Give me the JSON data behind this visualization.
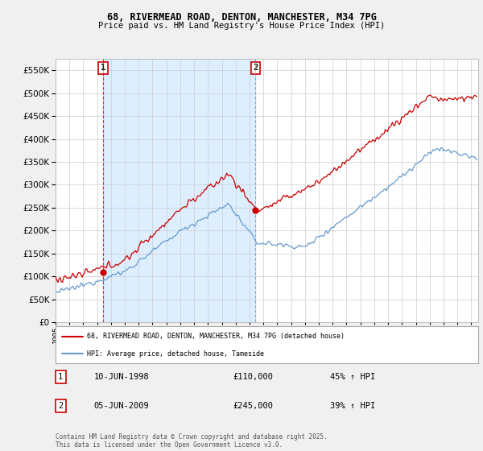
{
  "title_line1": "68, RIVERMEAD ROAD, DENTON, MANCHESTER, M34 7PG",
  "title_line2": "Price paid vs. HM Land Registry's House Price Index (HPI)",
  "legend_label_red": "68, RIVERMEAD ROAD, DENTON, MANCHESTER, M34 7PG (detached house)",
  "legend_label_blue": "HPI: Average price, detached house, Tameside",
  "annotation1_date": "10-JUN-1998",
  "annotation1_price": "£110,000",
  "annotation1_hpi": "45% ↑ HPI",
  "annotation2_date": "05-JUN-2009",
  "annotation2_price": "£245,000",
  "annotation2_hpi": "39% ↑ HPI",
  "footer": "Contains HM Land Registry data © Crown copyright and database right 2025.\nThis data is licensed under the Open Government Licence v3.0.",
  "ylim": [
    0,
    575000
  ],
  "yticks": [
    0,
    50000,
    100000,
    150000,
    200000,
    250000,
    300000,
    350000,
    400000,
    450000,
    500000,
    550000
  ],
  "xlim_start": 1995.0,
  "xlim_end": 2025.5,
  "xticks": [
    1995,
    1996,
    1997,
    1998,
    1999,
    2000,
    2001,
    2002,
    2003,
    2004,
    2005,
    2006,
    2007,
    2008,
    2009,
    2010,
    2011,
    2012,
    2013,
    2014,
    2015,
    2016,
    2017,
    2018,
    2019,
    2020,
    2021,
    2022,
    2023,
    2024,
    2025
  ],
  "red_color": "#cc0000",
  "blue_color": "#6699cc",
  "sale1_x": 1998.44,
  "sale1_y": 110000,
  "sale2_x": 2009.43,
  "sale2_y": 245000,
  "background_color": "#f0f0f0",
  "plot_bg_color": "#ffffff",
  "shade_color": "#ddeeff"
}
